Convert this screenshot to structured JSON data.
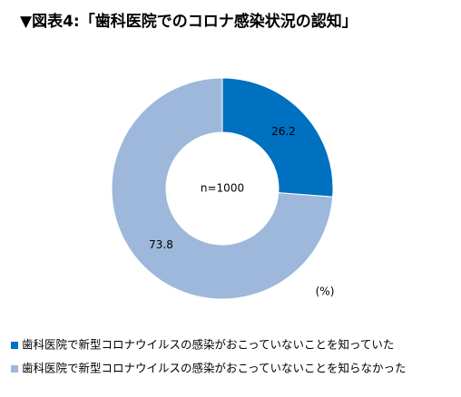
{
  "chart_data": {
    "type": "pie",
    "title": "▼図表4:「歯科医院でのコロナ感染状況の認知」",
    "center_label": "n=1000",
    "unit_label": "(%)",
    "categories": [
      "歯科医院で新型コロナウイルスの感染がおこっていないことを知っていた",
      "歯科医院で新型コロナウイルスの感染がおこっていないことを知らなかった"
    ],
    "values": [
      26.2,
      73.8
    ],
    "colors": [
      "#0070c0",
      "#9db8da"
    ]
  }
}
